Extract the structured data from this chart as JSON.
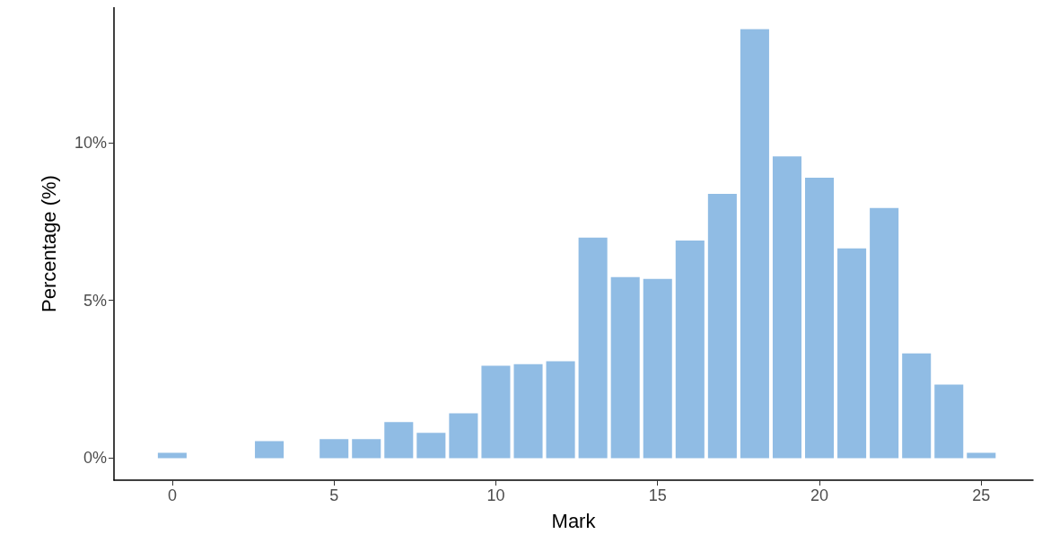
{
  "chart_data": {
    "type": "histogram",
    "xlabel": "Mark",
    "ylabel": "Percentage (%)",
    "bins": [
      -0.5,
      0.5,
      1.5,
      2.5,
      3.5,
      4.5,
      5.5,
      6.5,
      7.5,
      8.5,
      9.5,
      10.5,
      11.5,
      12.5,
      13.5,
      14.5,
      15.5,
      16.5,
      17.5,
      18.5,
      19.5,
      20.5,
      21.5,
      22.5,
      23.5,
      24.5,
      25.5
    ],
    "values": [
      0.17,
      0,
      0,
      0.54,
      0,
      0.6,
      0.6,
      1.14,
      0.8,
      1.42,
      2.93,
      2.98,
      3.07,
      6.99,
      5.74,
      5.68,
      6.9,
      8.38,
      13.6,
      9.57,
      8.89,
      6.65,
      7.93,
      3.32,
      2.33,
      0.17
    ],
    "color": "#90bce4",
    "xlim": [
      -1.8,
      26.6
    ],
    "xticks": [
      0,
      5,
      10,
      15,
      20,
      25
    ],
    "ylim": [
      -0.7,
      14.3
    ],
    "yticks": [
      {
        "value": 0,
        "label": "0%"
      },
      {
        "value": 5,
        "label": "5%"
      },
      {
        "value": 10,
        "label": "10%"
      }
    ],
    "grid": false
  }
}
